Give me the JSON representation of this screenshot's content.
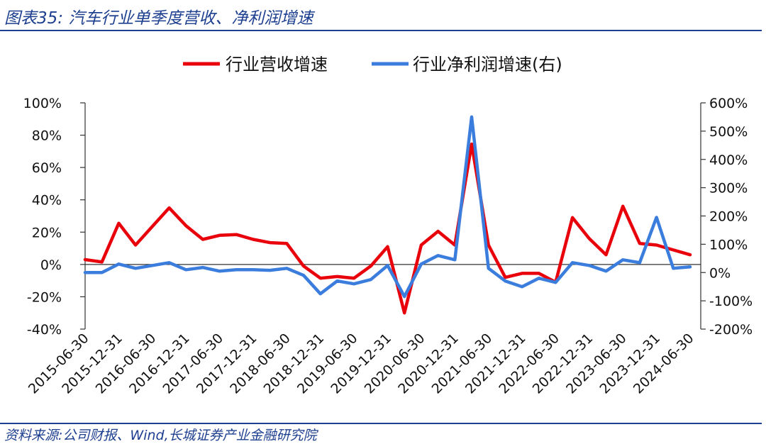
{
  "header": {
    "title": "图表35: 汽车行业单季度营收、净利润增速"
  },
  "footer": {
    "source": "资料来源:公司财报、Wind,长城证券产业金融研究院"
  },
  "chart_data": {
    "type": "line",
    "x": [
      "2015-06-30",
      "2015-09-30",
      "2015-12-31",
      "2016-03-31",
      "2016-06-30",
      "2016-09-30",
      "2016-12-31",
      "2017-03-31",
      "2017-06-30",
      "2017-09-30",
      "2017-12-31",
      "2018-03-31",
      "2018-06-30",
      "2018-09-30",
      "2018-12-31",
      "2019-03-31",
      "2019-06-30",
      "2019-09-30",
      "2019-12-31",
      "2020-03-31",
      "2020-06-30",
      "2020-09-30",
      "2020-12-31",
      "2021-03-31",
      "2021-06-30",
      "2021-09-30",
      "2021-12-31",
      "2022-03-31",
      "2022-06-30",
      "2022-09-30",
      "2022-12-31",
      "2023-03-31",
      "2023-06-30",
      "2023-09-30",
      "2023-12-31",
      "2024-03-31",
      "2024-06-30"
    ],
    "x_tick_labels": [
      "2015-06-30",
      "2015-12-31",
      "2016-06-30",
      "2016-12-31",
      "2017-06-30",
      "2017-12-31",
      "2018-06-30",
      "2018-12-31",
      "2019-06-30",
      "2019-12-31",
      "2020-06-30",
      "2020-12-31",
      "2021-06-30",
      "2021-12-31",
      "2022-06-30",
      "2022-12-31",
      "2023-06-30",
      "2023-12-31",
      "2024-06-30"
    ],
    "series": [
      {
        "name": "行业营收增速",
        "axis": "left",
        "color": "#e8000b",
        "values": [
          3,
          1.5,
          25.5,
          12,
          23.5,
          35,
          24,
          15.5,
          18,
          18.5,
          15.5,
          13.5,
          13,
          -1,
          -8.5,
          -7.5,
          -8.5,
          -1,
          11,
          -30,
          12,
          20.5,
          12,
          74.5,
          12,
          -8,
          -5.5,
          -5.5,
          -11,
          29,
          16,
          6,
          36,
          13,
          12,
          9,
          6
        ]
      },
      {
        "name": "行业净利润增速(右)",
        "axis": "right",
        "color": "#3b7ddd",
        "values": [
          0,
          0,
          30,
          15,
          25,
          35,
          10,
          18,
          5,
          10,
          10,
          8,
          15,
          -10,
          -75,
          -30,
          -40,
          -25,
          25,
          -85,
          30,
          60,
          45,
          550,
          15,
          -30,
          -50,
          -20,
          -35,
          35,
          25,
          5,
          45,
          35,
          195,
          15,
          20
        ]
      }
    ],
    "y_left": {
      "min": -40,
      "max": 100,
      "step": 20,
      "unit": "%",
      "tick_labels": [
        "-40%",
        "-20%",
        "0%",
        "20%",
        "40%",
        "60%",
        "80%",
        "100%"
      ]
    },
    "y_right": {
      "min": -200,
      "max": 600,
      "step": 100,
      "unit": "%",
      "tick_labels": [
        "-200%",
        "-100%",
        "0%",
        "100%",
        "200%",
        "300%",
        "400%",
        "500%",
        "600%"
      ]
    },
    "grid": false,
    "legend_position": "top-center"
  }
}
